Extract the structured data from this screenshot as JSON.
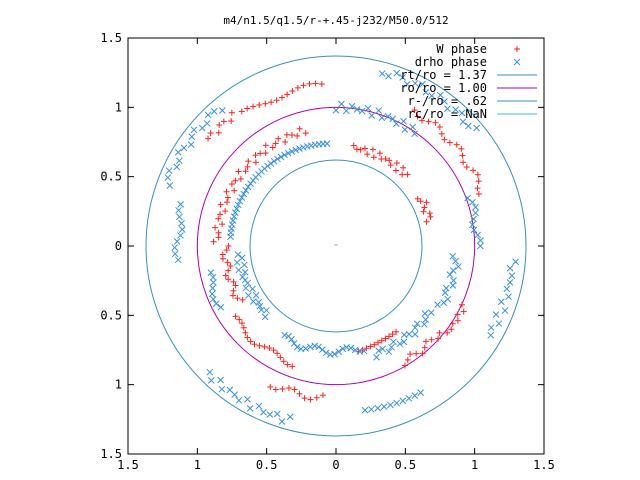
{
  "chart_data": {
    "type": "scatter",
    "title": "m4/n1.5/q1.5/r-+.45-j232/M50.0/512",
    "xlabel": "",
    "ylabel": "",
    "xlim": [
      -1.5,
      1.5
    ],
    "ylim": [
      -1.5,
      1.5
    ],
    "x_tick_values": [
      -1.5,
      -1,
      -0.5,
      0,
      0.5,
      1,
      1.5
    ],
    "x_tick_labels": [
      "1.5",
      "1",
      "0.5",
      "0",
      "0.5",
      "1",
      "1.5"
    ],
    "y_tick_values": [
      1.5,
      1,
      0.5,
      0,
      -0.5,
      -1,
      -1.5
    ],
    "y_tick_labels": [
      "1.5",
      "1",
      "0.5",
      "0",
      "0.5",
      "1",
      "1.5"
    ],
    "grid": false,
    "legend_position": "top-right",
    "circles": [
      {
        "label": "rt/ro = 1.37",
        "radius": 1.37,
        "color": "#3a8fbf"
      },
      {
        "label": "ro/ro = 1.00",
        "radius": 1.0,
        "color": "#b000b0"
      },
      {
        "label": "r-/ro = .62",
        "radius": 0.62,
        "color": "#3a8fbf"
      },
      {
        "label": "rc/ro = NaN",
        "radius": null,
        "color": "#40c0c0"
      }
    ],
    "series": [
      {
        "name": "W phase",
        "marker": "plus",
        "color": "#ff2020",
        "arcs": [
          {
            "r": 1.12,
            "a0": 20,
            "a1": 60
          },
          {
            "r": 1.16,
            "a0": 95,
            "a1": 125
          },
          {
            "r": 1.2,
            "a0": 128,
            "a1": 140
          },
          {
            "r": 0.86,
            "a0": 105,
            "a1": 178
          },
          {
            "r": 0.9,
            "a0": 215,
            "a1": 250
          },
          {
            "r": 1.1,
            "a0": 245,
            "a1": 265
          },
          {
            "r": 0.72,
            "a0": 45,
            "a1": 80
          },
          {
            "r": 0.7,
            "a0": 15,
            "a1": 30
          },
          {
            "r": 0.78,
            "a0": 282,
            "a1": 305
          },
          {
            "r": 0.97,
            "a0": 300,
            "a1": 320
          },
          {
            "r": 1.02,
            "a0": 322,
            "a1": 335
          },
          {
            "r": 0.8,
            "a0": 180,
            "a1": 210
          }
        ]
      },
      {
        "name": "drho phase",
        "marker": "cross",
        "color": "#3a8ee6",
        "arcs": [
          {
            "r": 1.3,
            "a0": 40,
            "a1": 75
          },
          {
            "r": 1.3,
            "a0": 130,
            "a1": 160
          },
          {
            "r": 1.14,
            "a0": 165,
            "a1": 185
          },
          {
            "r": 1.0,
            "a0": 55,
            "a1": 90
          },
          {
            "r": 0.74,
            "a0": 95,
            "a1": 175
          },
          {
            "r": 0.7,
            "a0": 185,
            "a1": 225
          },
          {
            "r": 0.76,
            "a0": 240,
            "a1": 285
          },
          {
            "r": 0.83,
            "a0": 290,
            "a1": 325
          },
          {
            "r": 0.87,
            "a0": 330,
            "a1": 355
          },
          {
            "r": 1.02,
            "a0": 0,
            "a1": 20
          },
          {
            "r": 1.3,
            "a0": 225,
            "a1": 255
          },
          {
            "r": 1.2,
            "a0": 280,
            "a1": 300
          },
          {
            "r": 1.28,
            "a0": 330,
            "a1": 355
          },
          {
            "r": 0.94,
            "a0": 192,
            "a1": 208
          }
        ]
      }
    ]
  }
}
